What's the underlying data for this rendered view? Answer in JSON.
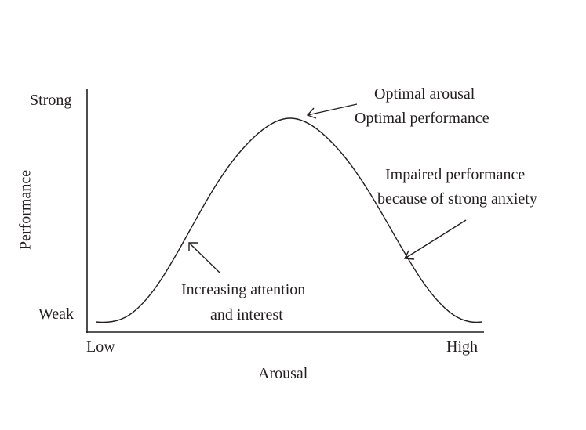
{
  "axes": {
    "y_title": "Performance",
    "y_top_label": "Strong",
    "y_bottom_label": "Weak",
    "x_title": "Arousal",
    "x_left_label": "Low",
    "x_right_label": "High"
  },
  "annotations": {
    "peak": [
      "Optimal arousal",
      "Optimal performance"
    ],
    "left": [
      "Increasing attention",
      "and interest"
    ],
    "right": [
      "Impaired performance",
      "because of strong anxiety"
    ]
  },
  "colors": {
    "ink": "#231f20",
    "background": "#ffffff"
  }
}
